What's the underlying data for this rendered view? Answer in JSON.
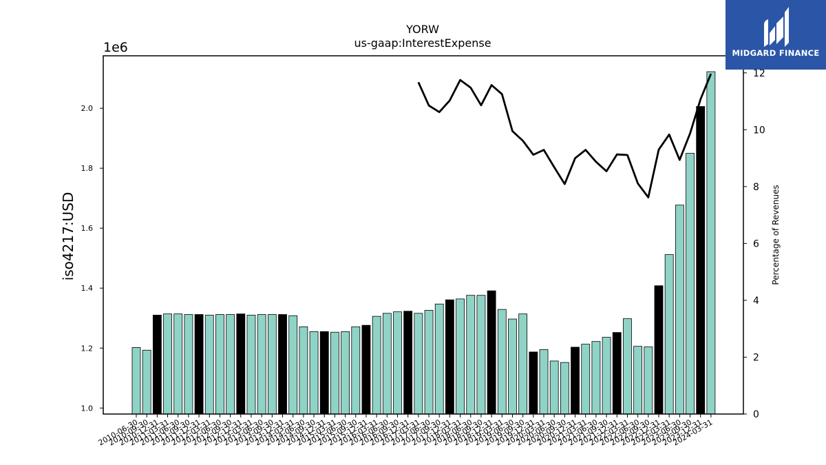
{
  "chart_data": {
    "type": "bar",
    "title": "YORW",
    "subtitle": "us-gaap:InterestExpense",
    "ylabel": "iso4217:USD",
    "y_offset_label": "1e6",
    "y2label": "Percentage of Revenues",
    "ylim": [
      0.98,
      2.175
    ],
    "y2lim": [
      0,
      12.6
    ],
    "yticks": [
      "1.0",
      "1.2",
      "1.4",
      "1.6",
      "1.8",
      "2.0"
    ],
    "y2ticks": [
      "0",
      "2",
      "4",
      "6",
      "8",
      "10",
      "12"
    ],
    "categories": [
      "2010-06-30",
      "2010-09-30",
      "2010-12-31",
      "2011-03-31",
      "2011-06-30",
      "2011-09-30",
      "2011-12-31",
      "2012-03-31",
      "2012-06-30",
      "2012-09-30",
      "2012-12-31",
      "2013-03-31",
      "2013-06-30",
      "2013-09-30",
      "2013-12-31",
      "2014-03-31",
      "2014-06-30",
      "2014-09-30",
      "2014-12-31",
      "2015-03-31",
      "2015-06-30",
      "2015-09-30",
      "2015-12-31",
      "2016-03-31",
      "2016-06-30",
      "2016-09-30",
      "2016-12-31",
      "2017-03-31",
      "2017-06-30",
      "2017-09-30",
      "2017-12-31",
      "2018-03-31",
      "2018-06-30",
      "2018-09-30",
      "2018-12-31",
      "2019-03-31",
      "2019-06-30",
      "2019-09-30",
      "2019-12-31",
      "2020-03-31",
      "2020-06-30",
      "2020-09-30",
      "2020-12-31",
      "2021-03-31",
      "2021-06-30",
      "2021-09-30",
      "2021-12-31",
      "2022-03-31",
      "2022-06-30",
      "2022-09-30",
      "2022-12-31",
      "2023-03-31",
      "2023-06-30",
      "2023-09-30",
      "2023-12-31",
      "2024-03-31"
    ],
    "series": [
      {
        "kind": "bar",
        "values": [
          1.202,
          1.193,
          1.31,
          1.314,
          1.314,
          1.312,
          1.312,
          1.31,
          1.312,
          1.312,
          1.314,
          1.31,
          1.312,
          1.312,
          1.312,
          1.308,
          1.271,
          1.255,
          1.255,
          1.253,
          1.255,
          1.271,
          1.276,
          1.306,
          1.316,
          1.321,
          1.323,
          1.316,
          1.326,
          1.347,
          1.361,
          1.364,
          1.376,
          1.376,
          1.391,
          1.329,
          1.297,
          1.314,
          1.187,
          1.195,
          1.157,
          1.152,
          1.203,
          1.213,
          1.222,
          1.236,
          1.252,
          1.298,
          1.206,
          1.204,
          1.408,
          1.512,
          1.677,
          1.85,
          2.006,
          2.122
        ],
        "annual": [
          false,
          false,
          true,
          false,
          false,
          false,
          true,
          false,
          false,
          false,
          true,
          false,
          false,
          false,
          true,
          false,
          false,
          false,
          true,
          false,
          false,
          false,
          true,
          false,
          false,
          false,
          true,
          false,
          false,
          false,
          true,
          false,
          false,
          false,
          true,
          false,
          false,
          false,
          true,
          false,
          false,
          false,
          true,
          false,
          false,
          false,
          true,
          false,
          false,
          false,
          true,
          false,
          false,
          false,
          true,
          false
        ]
      },
      {
        "kind": "line",
        "values": [
          null,
          null,
          null,
          null,
          null,
          null,
          null,
          null,
          null,
          null,
          null,
          null,
          null,
          null,
          null,
          null,
          null,
          null,
          null,
          null,
          null,
          null,
          null,
          null,
          null,
          null,
          null,
          11.67,
          10.85,
          10.62,
          11.03,
          11.75,
          11.48,
          10.86,
          11.57,
          11.25,
          9.95,
          9.61,
          9.12,
          9.29,
          8.68,
          8.09,
          9.0,
          9.29,
          8.87,
          8.54,
          9.13,
          9.11,
          8.11,
          7.62,
          9.3,
          9.83,
          8.94,
          9.87,
          11.07,
          11.97
        ]
      }
    ],
    "colors": {
      "bar": "#8fd3c6",
      "bar_annual": "#000000",
      "line": "#000000"
    },
    "grid": false
  },
  "logo": {
    "brand": "MIDGARD FINANCE",
    "icon": "midgard-logo-icon"
  }
}
